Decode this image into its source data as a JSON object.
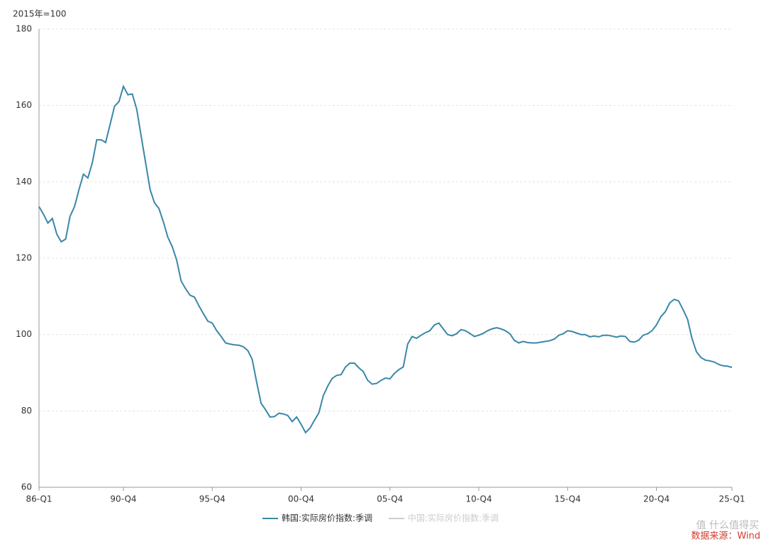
{
  "chart_data": {
    "type": "line",
    "y_label": "2015年=100",
    "source": "数据来源：Wind",
    "watermark": "值 什么值得买",
    "categories": [
      "86-Q1",
      null,
      null,
      null,
      null,
      null,
      null,
      null,
      null,
      null,
      null,
      null,
      null,
      null,
      null,
      null,
      null,
      null,
      null,
      "90-Q4",
      null,
      null,
      null,
      null,
      null,
      null,
      null,
      null,
      null,
      null,
      null,
      null,
      null,
      null,
      null,
      null,
      null,
      null,
      null,
      "95-Q4",
      null,
      null,
      null,
      null,
      null,
      null,
      null,
      null,
      null,
      null,
      null,
      null,
      null,
      null,
      null,
      null,
      null,
      null,
      null,
      "00-Q4",
      null,
      null,
      null,
      null,
      null,
      null,
      null,
      null,
      null,
      null,
      null,
      null,
      null,
      null,
      null,
      null,
      null,
      null,
      null,
      "05-Q4",
      null,
      null,
      null,
      null,
      null,
      null,
      null,
      null,
      null,
      null,
      null,
      null,
      null,
      null,
      null,
      null,
      null,
      null,
      null,
      "10-Q4",
      null,
      null,
      null,
      null,
      null,
      null,
      null,
      null,
      null,
      null,
      null,
      null,
      null,
      null,
      null,
      null,
      null,
      null,
      null,
      "15-Q4",
      null,
      null,
      null,
      null,
      null,
      null,
      null,
      null,
      null,
      null,
      null,
      null,
      null,
      null,
      null,
      null,
      null,
      null,
      null,
      "20-Q4",
      null,
      null,
      null,
      null,
      null,
      null,
      null,
      null,
      null,
      null,
      null,
      null,
      null,
      null,
      null,
      null,
      "25-Q1"
    ],
    "series": [
      {
        "name": "韩国:实际房价指数:季调",
        "color": "#3a87a8",
        "values": [
          133.5,
          131.5,
          129.2,
          130.4,
          126.3,
          124.3,
          125.0,
          131.0,
          133.5,
          138.0,
          142.0,
          141.0,
          145.0,
          151.0,
          151.0,
          150.3,
          155.0,
          159.8,
          161.0,
          165.0,
          162.8,
          163.0,
          159.0,
          152.0,
          145.0,
          138.0,
          134.5,
          133.0,
          129.5,
          125.5,
          123.0,
          119.5,
          114.0,
          112.0,
          110.3,
          109.8,
          107.5,
          105.5,
          103.5,
          103.0,
          101.0,
          99.5,
          97.8,
          97.5,
          97.3,
          97.2,
          96.8,
          95.8,
          93.5,
          87.5,
          82.0,
          80.3,
          78.4,
          78.5,
          79.4,
          79.2,
          78.8,
          77.2,
          78.4,
          76.5,
          74.3,
          75.5,
          77.5,
          79.5,
          84.0,
          86.5,
          88.5,
          89.3,
          89.5,
          91.5,
          92.5,
          92.5,
          91.3,
          90.3,
          88.0,
          87.0,
          87.2,
          88.0,
          88.6,
          88.4,
          89.8,
          90.8,
          91.5,
          97.5,
          99.5,
          99.0,
          99.8,
          100.5,
          101.0,
          102.5,
          103.0,
          101.5,
          100.0,
          99.7,
          100.2,
          101.3,
          101.0,
          100.3,
          99.5,
          99.8,
          100.3,
          101.0,
          101.5,
          101.8,
          101.5,
          101.0,
          100.2,
          98.5,
          97.8,
          98.2,
          97.9,
          97.8,
          97.8,
          98.0,
          98.2,
          98.4,
          98.8,
          99.8,
          100.2,
          101.0,
          100.8,
          100.4,
          100.0,
          100.0,
          99.4,
          99.6,
          99.4,
          99.8,
          99.8,
          99.6,
          99.3,
          99.6,
          99.5,
          98.2,
          98.0,
          98.5,
          99.8,
          100.2,
          101.0,
          102.5,
          104.7,
          106.0,
          108.3,
          109.2,
          108.8,
          106.5,
          104.0,
          99.0,
          95.5,
          94.0,
          93.3,
          93.1,
          92.8,
          92.2,
          91.8,
          91.7,
          91.4
        ]
      },
      {
        "name": "中国:实际房价指数:季调",
        "color": "#cccccc",
        "values": [
          null,
          null,
          null,
          null,
          null,
          null,
          null,
          null,
          null,
          null,
          null,
          null,
          null,
          null,
          null,
          null,
          null,
          null,
          null,
          null,
          null,
          null,
          null,
          null,
          null,
          null,
          null,
          null,
          null,
          null,
          null,
          null,
          null,
          null,
          null,
          null,
          null,
          null,
          null,
          null,
          null,
          null,
          null,
          null,
          null,
          null,
          null,
          null,
          null,
          null,
          null,
          null,
          null,
          null,
          null,
          null,
          null,
          null,
          null,
          null,
          null,
          null,
          null,
          null,
          null,
          null,
          null,
          null,
          null,
          null,
          null,
          null,
          null,
          null,
          null,
          null,
          null,
          null,
          null,
          null,
          null,
          null,
          null,
          null,
          null,
          null,
          null,
          null,
          null,
          null,
          null,
          null,
          null,
          null,
          null,
          null,
          null,
          null,
          null,
          null,
          null,
          null,
          null,
          null,
          null,
          null,
          null,
          null,
          null,
          null,
          null,
          null,
          null,
          null,
          null,
          null,
          null,
          null,
          null,
          null,
          null,
          null,
          null,
          null,
          null,
          null,
          null,
          null,
          null,
          null,
          null,
          null,
          null,
          null,
          null,
          null,
          null,
          null,
          null,
          null,
          null,
          null,
          null,
          null,
          null,
          null,
          null,
          null,
          null,
          null,
          null,
          null,
          null,
          null,
          null,
          null,
          null
        ]
      }
    ],
    "ylim": [
      60,
      180
    ],
    "yticks": [
      60,
      80,
      100,
      120,
      140,
      160,
      180
    ],
    "grid": true
  }
}
